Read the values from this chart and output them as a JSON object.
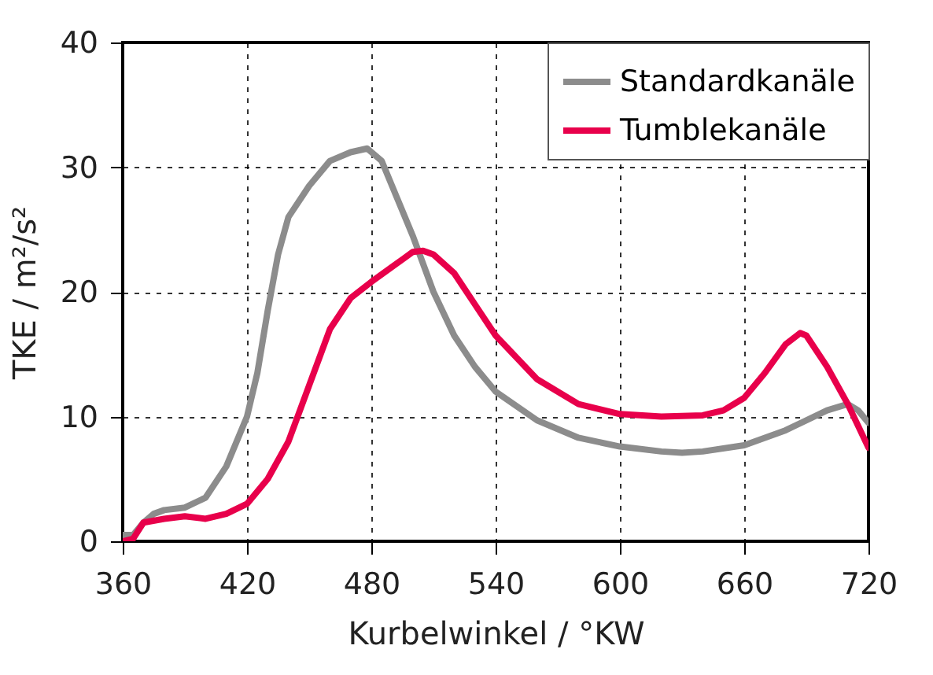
{
  "chart_data": {
    "type": "line",
    "xlabel": "Kurbelwinkel / °KW",
    "ylabel": "TKE / m²/s²",
    "xlim": [
      360,
      720
    ],
    "xticks": [
      360,
      420,
      480,
      540,
      600,
      660,
      720
    ],
    "ylim": [
      0,
      40
    ],
    "yticks": [
      0,
      10,
      20,
      30,
      40
    ],
    "grid": true,
    "legend": "top right",
    "line_style": "solid",
    "marker": "none",
    "series": [
      {
        "name": "Standardkanäle",
        "color": "#8c8c8c",
        "x": [
          360,
          365,
          370,
          375,
          380,
          390,
          400,
          410,
          420,
          425,
          430,
          435,
          440,
          450,
          460,
          470,
          478,
          485,
          490,
          500,
          510,
          520,
          530,
          540,
          560,
          580,
          600,
          620,
          630,
          640,
          660,
          680,
          700,
          710,
          715,
          720
        ],
        "values": [
          0.5,
          0.5,
          1.5,
          2.2,
          2.5,
          2.7,
          3.5,
          6,
          10,
          13.5,
          18.5,
          23,
          26,
          28.5,
          30.5,
          31.2,
          31.5,
          30.5,
          28.5,
          24.5,
          20,
          16.5,
          14,
          12,
          9.7,
          8.3,
          7.6,
          7.2,
          7.1,
          7.2,
          7.7,
          8.9,
          10.5,
          11,
          10.5,
          9.5
        ]
      },
      {
        "name": "Tumblekanäle",
        "color": "#e8004b",
        "x": [
          360,
          365,
          370,
          380,
          390,
          400,
          410,
          420,
          430,
          440,
          450,
          460,
          470,
          480,
          490,
          500,
          505,
          510,
          520,
          530,
          540,
          560,
          580,
          600,
          620,
          640,
          650,
          660,
          670,
          680,
          687,
          690,
          700,
          710,
          720
        ],
        "values": [
          0,
          0.2,
          1.5,
          1.8,
          2,
          1.8,
          2.2,
          3,
          5,
          8,
          12.5,
          17,
          19.5,
          20.8,
          22,
          23.2,
          23.3,
          23,
          21.5,
          19,
          16.5,
          13,
          11,
          10.2,
          10,
          10.1,
          10.5,
          11.5,
          13.5,
          15.8,
          16.7,
          16.5,
          14,
          11,
          7.5
        ]
      }
    ]
  }
}
